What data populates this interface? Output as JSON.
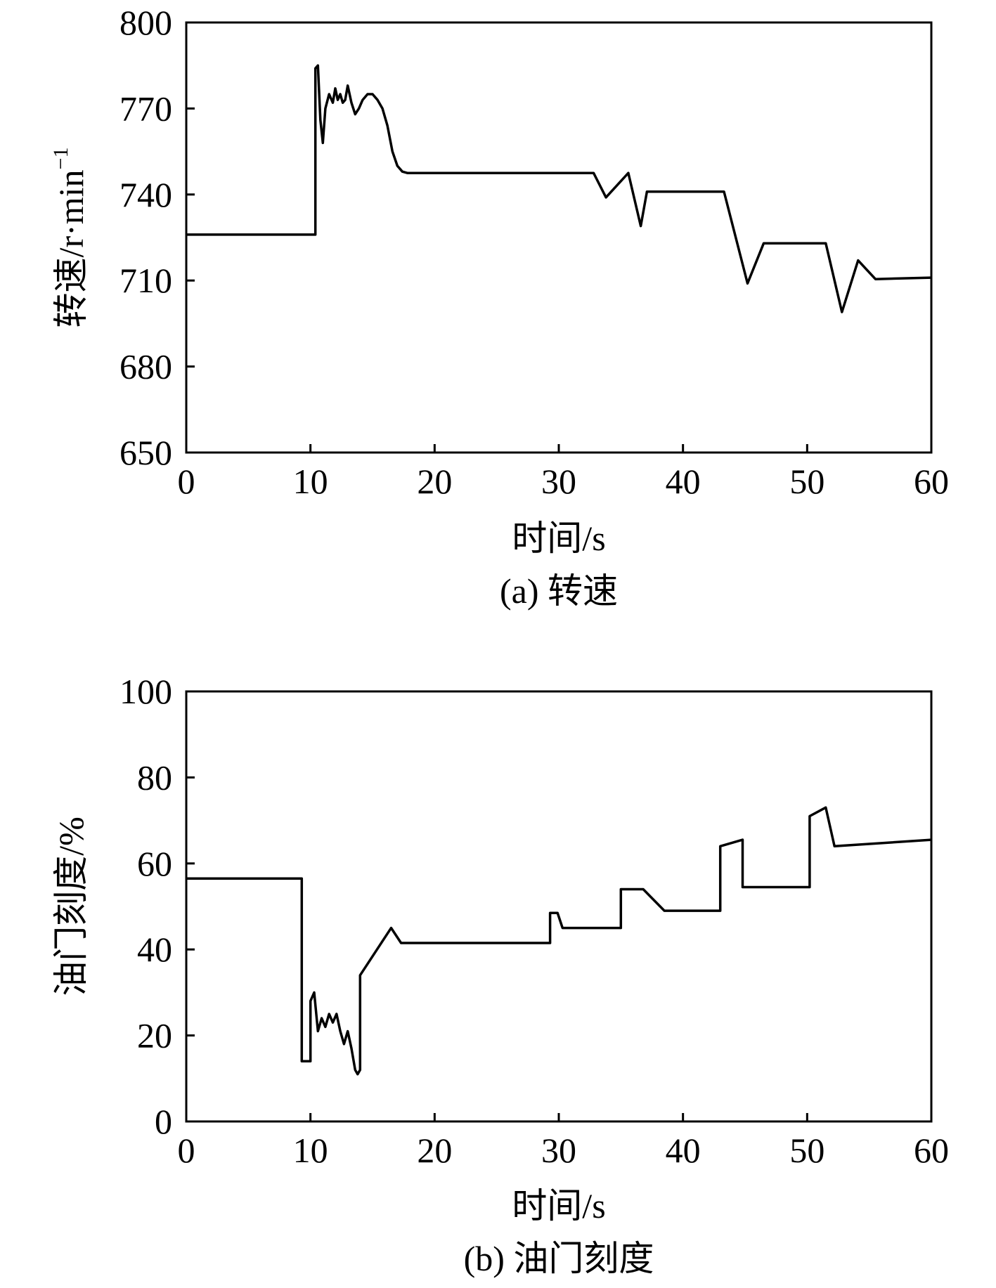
{
  "chart_data": [
    {
      "type": "line",
      "caption": "(a) 转速",
      "xlabel": "时间/s",
      "ylabel": "转速/r·min",
      "ylabel_sup": "−1",
      "xlim": [
        0,
        60
      ],
      "ylim": [
        650,
        800
      ],
      "xticks": [
        "0",
        "10",
        "20",
        "30",
        "40",
        "50",
        "60"
      ],
      "yticks": [
        "650",
        "680",
        "710",
        "740",
        "770",
        "800"
      ],
      "grid": false,
      "series": [
        {
          "x": [
            0,
            10.4,
            10.4,
            10.6,
            10.8,
            11.0,
            11.2,
            11.5,
            11.8,
            12.0,
            12.2,
            12.4,
            12.6,
            12.8,
            13.0,
            13.3,
            13.6,
            13.9,
            14.2,
            14.6,
            15.0,
            15.4,
            15.8,
            16.2,
            16.6,
            17.0,
            17.4,
            17.8,
            18.5,
            20,
            25,
            32.8,
            33.8,
            35.6,
            36.6,
            37.1,
            43.3,
            45.2,
            46.5,
            51.5,
            52.8,
            54.1,
            55.5,
            60
          ],
          "y": [
            726,
            726,
            784,
            785,
            766,
            758,
            770,
            775,
            772,
            777,
            773,
            775,
            772,
            773,
            778,
            772,
            768,
            770,
            773,
            775,
            775,
            773,
            770,
            764,
            755,
            750,
            748,
            747.5,
            747.5,
            747.5,
            747.5,
            747.5,
            739,
            747.5,
            729,
            741,
            741,
            709,
            723,
            723,
            699,
            717,
            710.5,
            711
          ]
        }
      ]
    },
    {
      "type": "line",
      "caption": "(b) 油门刻度",
      "xlabel": "时间/s",
      "ylabel": "油门刻度/%",
      "xlim": [
        0,
        60
      ],
      "ylim": [
        0,
        100
      ],
      "xticks": [
        "0",
        "10",
        "20",
        "30",
        "40",
        "50",
        "60"
      ],
      "yticks": [
        "0",
        "20",
        "40",
        "60",
        "80",
        "100"
      ],
      "grid": false,
      "series": [
        {
          "x": [
            0,
            9.3,
            9.3,
            10.0,
            10.0,
            10.3,
            10.6,
            10.9,
            11.2,
            11.5,
            11.8,
            12.1,
            12.4,
            12.7,
            13.0,
            13.3,
            13.6,
            13.8,
            14.0,
            14.0,
            16.5,
            17.3,
            29.3,
            29.3,
            29.9,
            30.3,
            35.0,
            35.0,
            36.8,
            38.5,
            43.0,
            43.0,
            44.8,
            44.8,
            50.2,
            50.2,
            51.5,
            52.2,
            60
          ],
          "y": [
            56.5,
            56.5,
            14,
            14,
            28,
            30,
            21,
            24,
            22,
            25,
            23,
            25,
            21,
            18,
            21,
            17,
            12,
            11,
            12,
            34,
            45,
            41.5,
            41.5,
            48.5,
            48.5,
            45,
            45,
            54,
            54,
            49,
            49,
            64,
            65.5,
            54.5,
            54.5,
            71,
            73,
            64,
            65.5
          ]
        }
      ]
    }
  ]
}
